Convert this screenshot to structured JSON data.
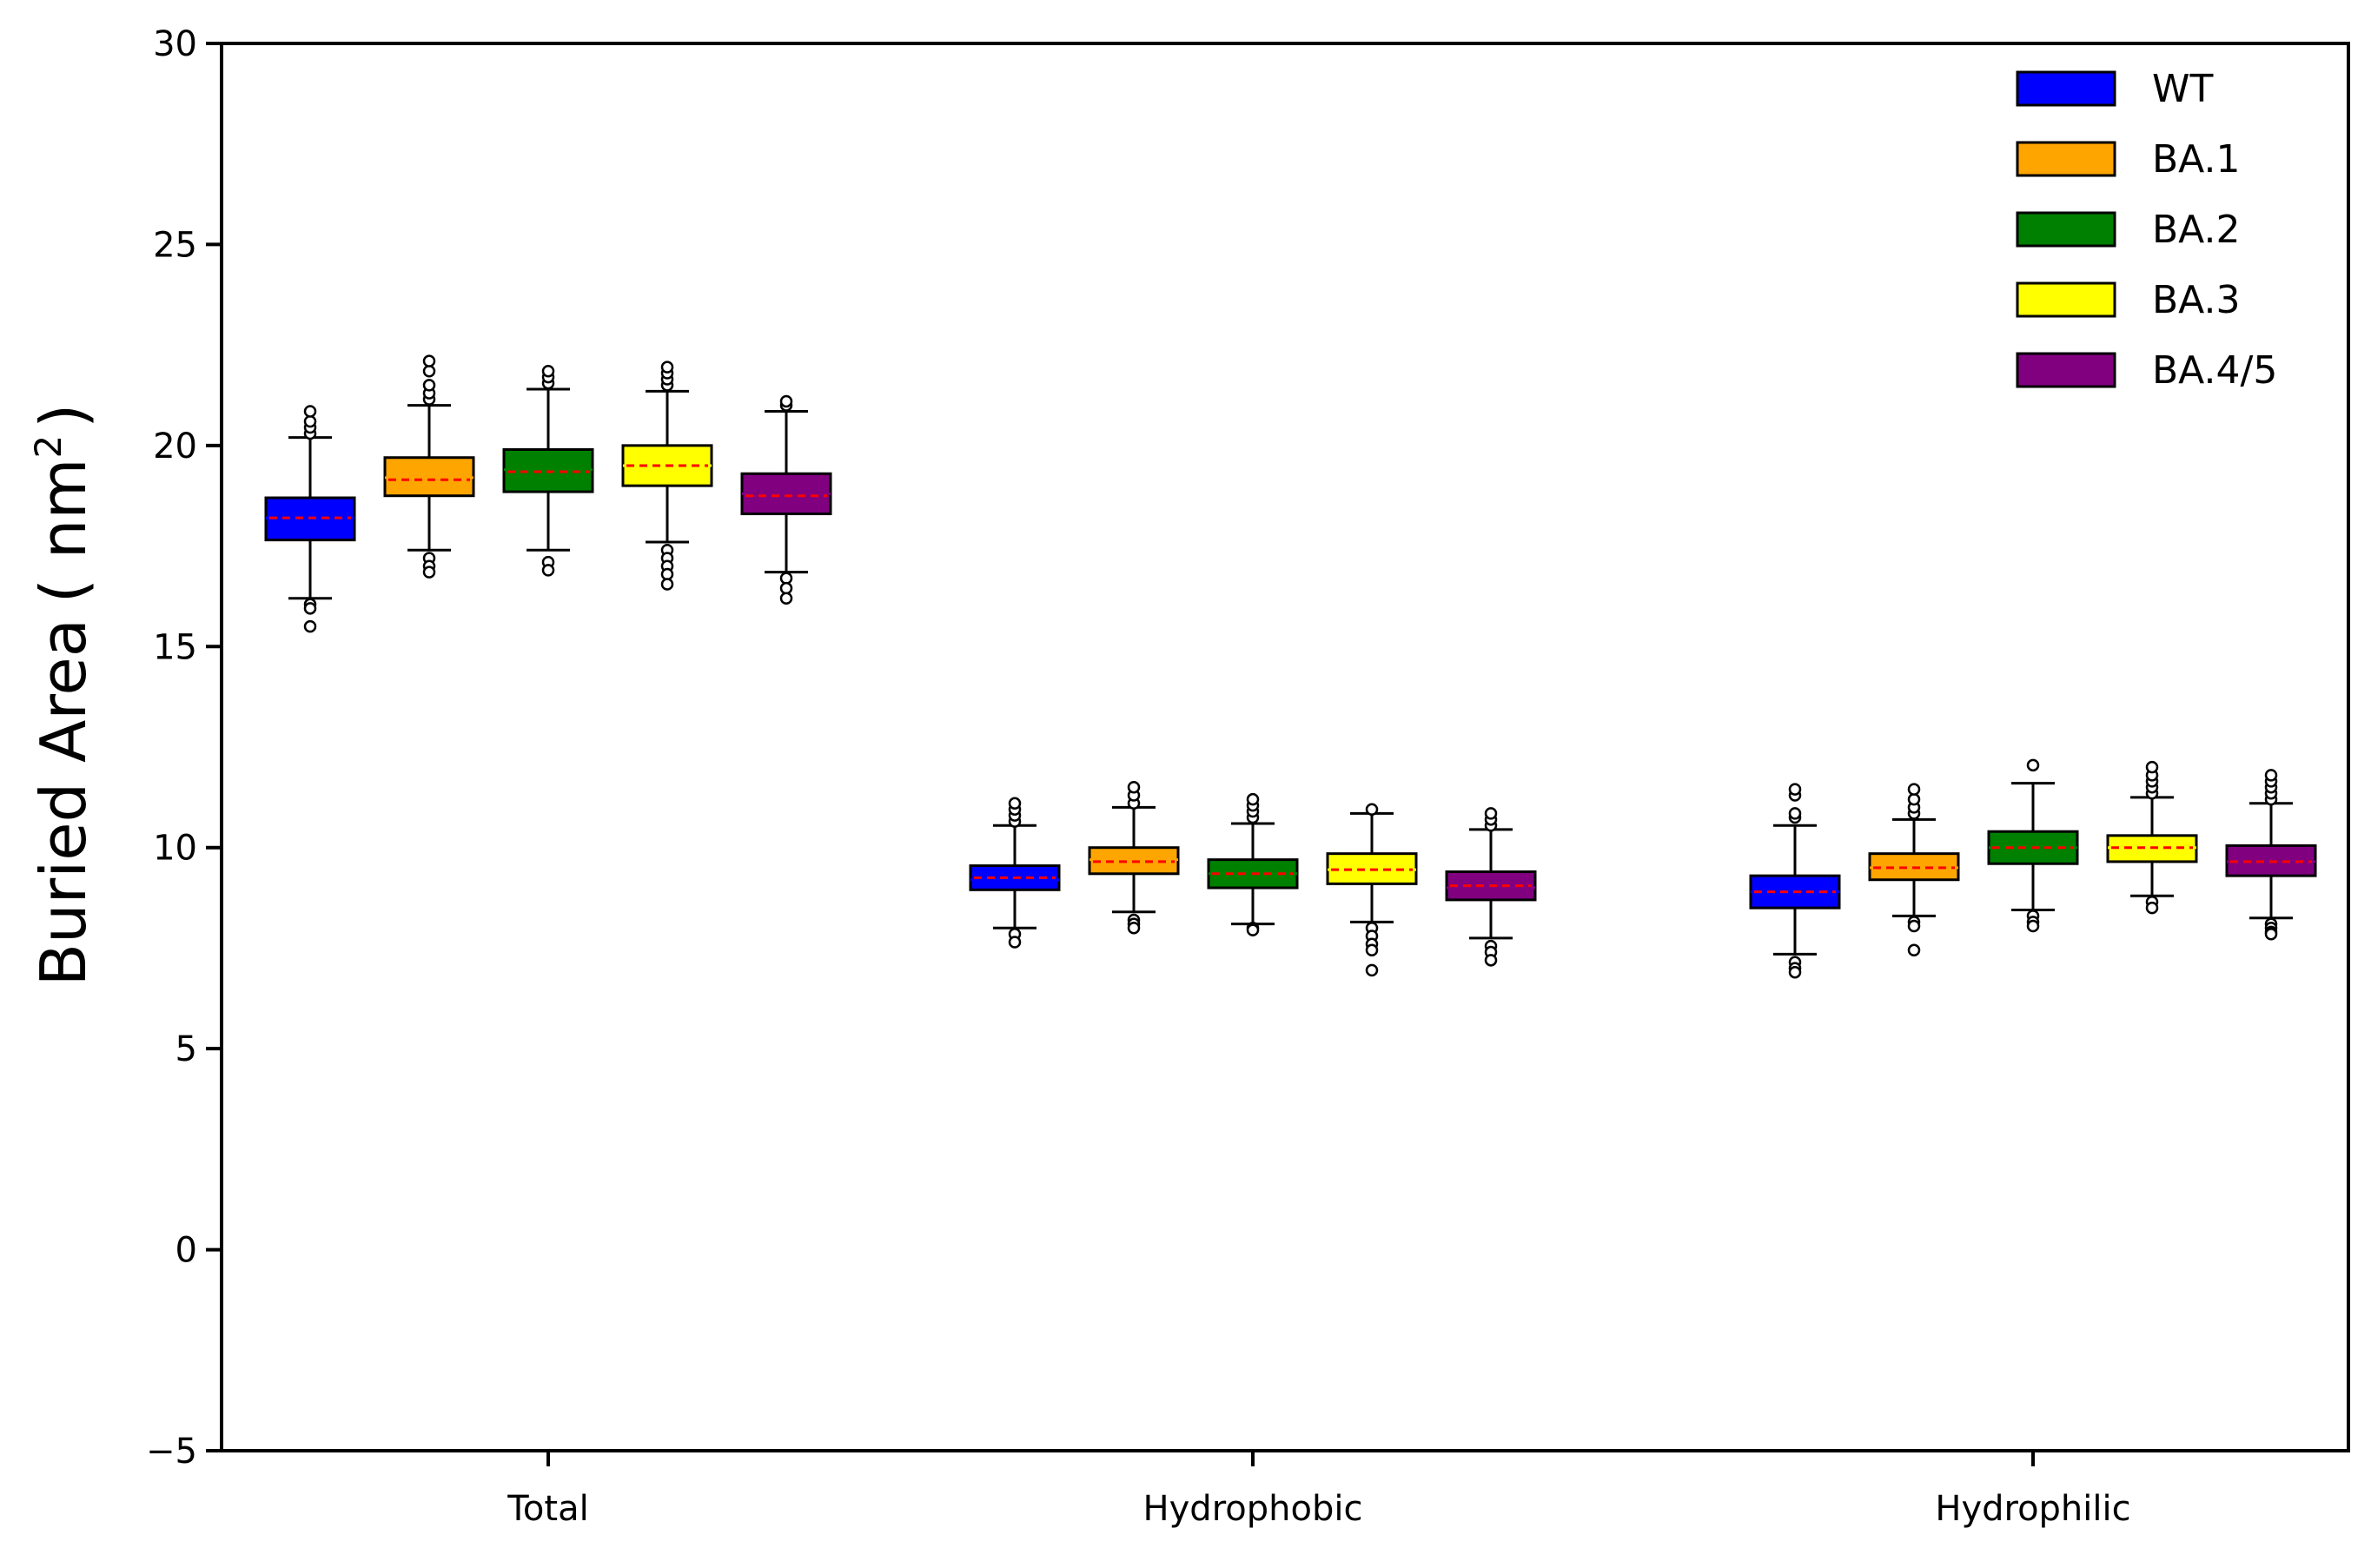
{
  "chart_data": {
    "type": "box",
    "title": "",
    "xlabel": "",
    "ylabel": "Buried Area",
    "ylabel_unit": "( nm",
    "ylabel_unit_sup": "2",
    "ylabel_unit_close": ")",
    "ylim": [
      -5,
      30
    ],
    "yticks": [
      -5,
      0,
      5,
      10,
      15,
      20,
      25,
      30
    ],
    "ytick_labels": [
      "−5",
      "0",
      "5",
      "10",
      "15",
      "20",
      "25",
      "30"
    ],
    "categories": [
      "Total",
      "Hydrophobic",
      "Hydrophilic"
    ],
    "legend_position": "top-right",
    "series": [
      {
        "name": "WT",
        "color": "#0000ff",
        "mean_color": "#ff0000",
        "boxes": [
          {
            "whislo": 16.2,
            "q1": 17.65,
            "med": 18.2,
            "q3": 18.7,
            "whishi": 20.2,
            "mean": 18.2,
            "fliers_low": [
              16.05,
              15.95,
              15.5
            ],
            "fliers_high": [
              20.3,
              20.45,
              20.6,
              20.85
            ]
          },
          {
            "whislo": 8.0,
            "q1": 8.95,
            "med": 9.2,
            "q3": 9.55,
            "whishi": 10.55,
            "mean": 9.25,
            "fliers_low": [
              7.85,
              7.65
            ],
            "fliers_high": [
              10.65,
              10.8,
              10.95,
              11.1
            ]
          },
          {
            "whislo": 7.35,
            "q1": 8.5,
            "med": 8.9,
            "q3": 9.3,
            "whishi": 10.55,
            "mean": 8.9,
            "fliers_low": [
              7.15,
              7.0,
              6.9
            ],
            "fliers_high": [
              10.75,
              10.85,
              11.3,
              11.45
            ]
          }
        ]
      },
      {
        "name": "BA.1",
        "color": "#ffa500",
        "mean_color": "#ff0000",
        "boxes": [
          {
            "whislo": 17.4,
            "q1": 18.75,
            "med": 19.2,
            "q3": 19.7,
            "whishi": 21.0,
            "mean": 19.15,
            "fliers_low": [
              17.2,
              17.0,
              16.85
            ],
            "fliers_high": [
              21.15,
              21.3,
              21.5,
              21.85,
              22.1
            ]
          },
          {
            "whislo": 8.4,
            "q1": 9.35,
            "med": 9.7,
            "q3": 10.0,
            "whishi": 11.0,
            "mean": 9.65,
            "fliers_low": [
              8.2,
              8.1,
              8.0
            ],
            "fliers_high": [
              11.1,
              11.3,
              11.5
            ]
          },
          {
            "whislo": 8.3,
            "q1": 9.2,
            "med": 9.5,
            "q3": 9.85,
            "whishi": 10.7,
            "mean": 9.5,
            "fliers_low": [
              8.15,
              8.05,
              7.45
            ],
            "fliers_high": [
              10.85,
              11.0,
              11.2,
              11.45
            ]
          }
        ]
      },
      {
        "name": "BA.2",
        "color": "#008000",
        "mean_color": "#ff0000",
        "boxes": [
          {
            "whislo": 17.4,
            "q1": 18.85,
            "med": 19.4,
            "q3": 19.9,
            "whishi": 21.4,
            "mean": 19.35,
            "fliers_low": [
              17.1,
              16.9
            ],
            "fliers_high": [
              21.55,
              21.7,
              21.85
            ]
          },
          {
            "whislo": 8.1,
            "q1": 9.0,
            "med": 9.35,
            "q3": 9.7,
            "whishi": 10.6,
            "mean": 9.35,
            "fliers_low": [
              8.0,
              7.95
            ],
            "fliers_high": [
              10.75,
              10.9,
              11.05,
              11.2
            ]
          },
          {
            "whislo": 8.45,
            "q1": 9.6,
            "med": 10.0,
            "q3": 10.4,
            "whishi": 11.6,
            "mean": 10.0,
            "fliers_low": [
              8.3,
              8.15,
              8.05
            ],
            "fliers_high": [
              12.05
            ]
          }
        ]
      },
      {
        "name": "BA.3",
        "color": "#ffff00",
        "mean_color": "#ff0000",
        "boxes": [
          {
            "whislo": 17.6,
            "q1": 19.0,
            "med": 19.5,
            "q3": 20.0,
            "whishi": 21.35,
            "mean": 19.5,
            "fliers_low": [
              17.4,
              17.2,
              17.0,
              16.8,
              16.55
            ],
            "fliers_high": [
              21.5,
              21.65,
              21.8,
              21.95
            ]
          },
          {
            "whislo": 8.15,
            "q1": 9.1,
            "med": 9.45,
            "q3": 9.85,
            "whishi": 10.85,
            "mean": 9.45,
            "fliers_low": [
              8.0,
              7.8,
              7.6,
              7.45,
              6.95
            ],
            "fliers_high": [
              10.95
            ]
          },
          {
            "whislo": 8.8,
            "q1": 9.65,
            "med": 10.0,
            "q3": 10.3,
            "whishi": 11.25,
            "mean": 10.0,
            "fliers_low": [
              8.65,
              8.5
            ],
            "fliers_high": [
              11.35,
              11.5,
              11.65,
              11.8,
              12.0
            ]
          }
        ]
      },
      {
        "name": "BA.4/5",
        "color": "#800080",
        "mean_color": "#ff0000",
        "boxes": [
          {
            "whislo": 16.85,
            "q1": 18.3,
            "med": 18.8,
            "q3": 19.3,
            "whishi": 20.85,
            "mean": 18.75,
            "fliers_low": [
              16.7,
              16.45,
              16.2
            ],
            "fliers_high": [
              21.0,
              21.1
            ]
          },
          {
            "whislo": 7.75,
            "q1": 8.7,
            "med": 9.0,
            "q3": 9.4,
            "whishi": 10.45,
            "mean": 9.05,
            "fliers_low": [
              7.55,
              7.4,
              7.2
            ],
            "fliers_high": [
              10.55,
              10.7,
              10.85
            ]
          },
          {
            "whislo": 8.25,
            "q1": 9.3,
            "med": 9.65,
            "q3": 10.05,
            "whishi": 11.1,
            "mean": 9.65,
            "fliers_low": [
              8.1,
              8.0,
              7.9,
              7.85
            ],
            "fliers_high": [
              11.2,
              11.35,
              11.5,
              11.65,
              11.8
            ]
          }
        ]
      }
    ]
  }
}
